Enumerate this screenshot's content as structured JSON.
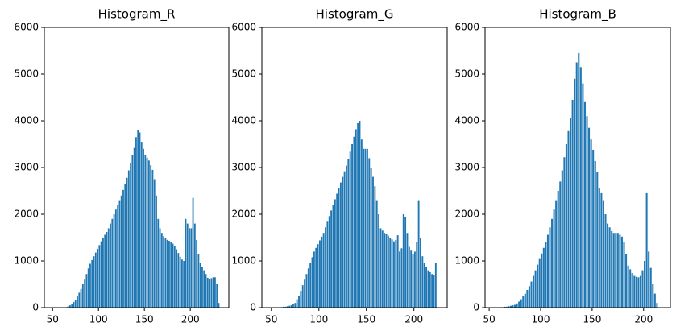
{
  "chart_data": [
    {
      "type": "bar",
      "title": "Histogram_R",
      "color": "#1f77b4",
      "x": [
        65,
        67,
        69,
        71,
        73,
        75,
        77,
        79,
        81,
        83,
        85,
        87,
        89,
        91,
        93,
        95,
        97,
        99,
        101,
        103,
        105,
        107,
        109,
        111,
        113,
        115,
        117,
        119,
        121,
        123,
        125,
        127,
        129,
        131,
        133,
        135,
        137,
        139,
        141,
        143,
        145,
        147,
        149,
        151,
        153,
        155,
        157,
        159,
        161,
        163,
        165,
        167,
        169,
        171,
        173,
        175,
        177,
        179,
        181,
        183,
        185,
        187,
        189,
        191,
        193,
        195,
        197,
        199,
        201,
        203,
        205,
        207,
        209,
        211,
        213,
        215,
        217,
        219,
        221,
        223,
        225,
        227,
        229,
        231
      ],
      "values": [
        10,
        30,
        50,
        80,
        120,
        160,
        240,
        320,
        400,
        500,
        600,
        720,
        840,
        940,
        1020,
        1100,
        1180,
        1260,
        1340,
        1420,
        1500,
        1560,
        1620,
        1700,
        1800,
        1900,
        2000,
        2100,
        2200,
        2300,
        2400,
        2520,
        2640,
        2780,
        2940,
        3100,
        3260,
        3420,
        3650,
        3800,
        3750,
        3550,
        3400,
        3270,
        3210,
        3150,
        3050,
        2950,
        2750,
        2400,
        1900,
        1700,
        1600,
        1530,
        1490,
        1450,
        1430,
        1410,
        1370,
        1310,
        1250,
        1170,
        1090,
        1030,
        1000,
        1900,
        1800,
        1700,
        1700,
        2350,
        1800,
        1450,
        1150,
        960,
        880,
        800,
        720,
        640,
        610,
        630,
        650,
        650,
        500,
        100
      ],
      "xlim": [
        41,
        242
      ],
      "xticks": [
        50,
        100,
        150,
        200
      ],
      "ylim": [
        0,
        6000
      ],
      "yticks": [
        0,
        1000,
        2000,
        3000,
        4000,
        5000,
        6000
      ]
    },
    {
      "type": "bar",
      "title": "Histogram_G",
      "color": "#1f77b4",
      "x": [
        59,
        61,
        63,
        65,
        67,
        69,
        71,
        73,
        75,
        77,
        79,
        81,
        83,
        85,
        87,
        89,
        91,
        93,
        95,
        97,
        99,
        101,
        103,
        105,
        107,
        109,
        111,
        113,
        115,
        117,
        119,
        121,
        123,
        125,
        127,
        129,
        131,
        133,
        135,
        137,
        139,
        141,
        143,
        145,
        147,
        149,
        151,
        153,
        155,
        157,
        159,
        161,
        163,
        165,
        167,
        169,
        171,
        173,
        175,
        177,
        179,
        181,
        183,
        185,
        187,
        189,
        191,
        193,
        195,
        197,
        199,
        201,
        203,
        205,
        207,
        209,
        211,
        213,
        215,
        217,
        219,
        221,
        223
      ],
      "values": [
        10,
        10,
        20,
        20,
        30,
        40,
        50,
        70,
        100,
        180,
        260,
        360,
        480,
        600,
        720,
        840,
        960,
        1080,
        1200,
        1280,
        1360,
        1440,
        1520,
        1600,
        1720,
        1840,
        1960,
        2080,
        2200,
        2320,
        2440,
        2560,
        2680,
        2800,
        2920,
        3040,
        3180,
        3340,
        3500,
        3660,
        3820,
        3950,
        4000,
        3600,
        3400,
        3400,
        3400,
        3200,
        3000,
        2800,
        2600,
        2300,
        2000,
        1700,
        1650,
        1600,
        1580,
        1540,
        1500,
        1460,
        1420,
        1450,
        1550,
        1200,
        1270,
        2000,
        1950,
        1600,
        1300,
        1220,
        1140,
        1200,
        1400,
        2300,
        1500,
        1100,
        960,
        880,
        800,
        760,
        720,
        700,
        950
      ],
      "xlim": [
        40,
        235
      ],
      "xticks": [
        50,
        100,
        150,
        200
      ],
      "ylim": [
        0,
        6000
      ],
      "yticks": [
        0,
        1000,
        2000,
        3000,
        4000,
        5000,
        6000
      ]
    },
    {
      "type": "bar",
      "title": "Histogram_B",
      "color": "#1f77b4",
      "x": [
        61,
        63,
        65,
        67,
        69,
        71,
        73,
        75,
        77,
        79,
        81,
        83,
        85,
        87,
        89,
        91,
        93,
        95,
        97,
        99,
        101,
        103,
        105,
        107,
        109,
        111,
        113,
        115,
        117,
        119,
        121,
        123,
        125,
        127,
        129,
        131,
        133,
        135,
        137,
        139,
        141,
        143,
        145,
        147,
        149,
        151,
        153,
        155,
        157,
        159,
        161,
        163,
        165,
        167,
        169,
        171,
        173,
        175,
        177,
        179,
        181,
        183,
        185,
        187,
        189,
        191,
        193,
        195,
        197,
        199,
        201,
        203,
        205,
        207,
        209,
        211,
        213
      ],
      "values": [
        10,
        10,
        20,
        20,
        30,
        40,
        50,
        60,
        90,
        130,
        180,
        240,
        300,
        380,
        460,
        560,
        680,
        800,
        920,
        1040,
        1160,
        1280,
        1400,
        1560,
        1720,
        1900,
        2100,
        2300,
        2500,
        2700,
        2940,
        3220,
        3500,
        3780,
        4060,
        4450,
        4900,
        5250,
        5450,
        5150,
        4800,
        4400,
        4100,
        3850,
        3600,
        3380,
        3140,
        2900,
        2550,
        2450,
        2300,
        2000,
        1800,
        1720,
        1640,
        1600,
        1600,
        1600,
        1560,
        1520,
        1400,
        1150,
        900,
        820,
        740,
        680,
        660,
        650,
        680,
        800,
        1000,
        2450,
        1200,
        850,
        500,
        300,
        100
      ],
      "xlim": [
        46,
        226
      ],
      "xticks": [
        50,
        100,
        150,
        200
      ],
      "ylim": [
        0,
        6000
      ],
      "yticks": [
        0,
        1000,
        2000,
        3000,
        4000,
        5000,
        6000
      ]
    }
  ]
}
